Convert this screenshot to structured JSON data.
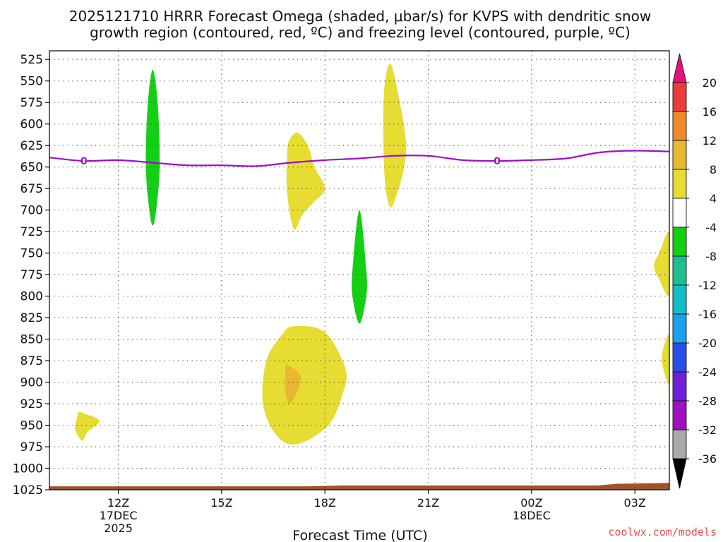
{
  "chart_data": {
    "type": "time-height cross-section",
    "title_lines": [
      "2025121710 HRRR Forecast Omega (shaded, μbar/s) for KVPS with dendritic snow",
      "growth region (contoured, red, ºC) and freezing level (contoured, purple, ºC)"
    ],
    "xlabel": "Forecast Time (UTC)",
    "x_range_hours": [
      10,
      28
    ],
    "x_ticks": [
      {
        "hour": 12,
        "lines": [
          "12Z",
          "17DEC",
          "2025"
        ]
      },
      {
        "hour": 15,
        "lines": [
          "15Z"
        ]
      },
      {
        "hour": 18,
        "lines": [
          "18Z"
        ]
      },
      {
        "hour": 21,
        "lines": [
          "21Z"
        ]
      },
      {
        "hour": 24,
        "lines": [
          "00Z",
          "18DEC"
        ]
      },
      {
        "hour": 27,
        "lines": [
          "03Z"
        ]
      }
    ],
    "y_ticks_mb": [
      525,
      550,
      575,
      600,
      625,
      650,
      675,
      700,
      725,
      750,
      775,
      800,
      825,
      850,
      875,
      900,
      925,
      950,
      975,
      1000,
      1025
    ],
    "y_range_mb": [
      515,
      1025
    ],
    "grid": true,
    "colorbar": {
      "labels": [
        "20",
        "16",
        "12",
        "8",
        "4",
        "-4",
        "-8",
        "-12",
        "-16",
        "-20",
        "-24",
        "-28",
        "-32",
        "-36"
      ],
      "bins": [
        {
          "range": [
            16,
            20
          ],
          "color": "#ee3a3a"
        },
        {
          "range": [
            12,
            16
          ],
          "color": "#f08a28"
        },
        {
          "range": [
            8,
            12
          ],
          "color": "#e8b830"
        },
        {
          "range": [
            4,
            8
          ],
          "color": "#e6dc32"
        },
        {
          "range": [
            -4,
            4
          ],
          "color": "#ffffff"
        },
        {
          "range": [
            -8,
            -4
          ],
          "color": "#14d014"
        },
        {
          "range": [
            -12,
            -8
          ],
          "color": "#1ec090"
        },
        {
          "range": [
            -16,
            -12
          ],
          "color": "#10c0c8"
        },
        {
          "range": [
            -20,
            -16
          ],
          "color": "#1aa0f0"
        },
        {
          "range": [
            -24,
            -20
          ],
          "color": "#2850e8"
        },
        {
          "range": [
            -28,
            -24
          ],
          "color": "#7020d8"
        },
        {
          "range": [
            -32,
            -28
          ],
          "color": "#a010c0"
        },
        {
          "range": [
            -36,
            -32
          ],
          "color": "#aaaaaa"
        }
      ],
      "over_color": "#e8107a",
      "under_color": "#000000"
    },
    "freezing_level": {
      "color": "#9a10c8",
      "contour_label": "0",
      "label_hours": [
        11,
        23
      ],
      "points": [
        [
          10,
          639
        ],
        [
          11,
          643
        ],
        [
          12,
          642
        ],
        [
          13,
          645
        ],
        [
          14,
          648
        ],
        [
          15,
          648
        ],
        [
          16,
          649
        ],
        [
          17,
          645
        ],
        [
          18,
          642
        ],
        [
          19,
          640
        ],
        [
          20,
          637
        ],
        [
          21,
          637
        ],
        [
          22,
          642
        ],
        [
          23,
          643
        ],
        [
          24,
          642
        ],
        [
          25,
          640
        ],
        [
          26,
          633
        ],
        [
          27,
          631
        ],
        [
          28,
          632
        ]
      ]
    },
    "omega_regions": [
      {
        "value_class": "-4 to -8",
        "color": "#14d014",
        "outline": [
          [
            13.0,
            537
          ],
          [
            13.15,
            580
          ],
          [
            13.2,
            650
          ],
          [
            13.1,
            700
          ],
          [
            13.0,
            718
          ],
          [
            12.9,
            700
          ],
          [
            12.8,
            650
          ],
          [
            12.85,
            580
          ]
        ]
      },
      {
        "value_class": "-4 to -8",
        "color": "#14d014",
        "outline": [
          [
            19.0,
            700
          ],
          [
            19.2,
            770
          ],
          [
            19.2,
            800
          ],
          [
            19.0,
            832
          ],
          [
            18.8,
            800
          ],
          [
            18.8,
            770
          ]
        ]
      },
      {
        "value_class": "4 to 8",
        "color": "#e6dc32",
        "outline": [
          [
            19.9,
            530
          ],
          [
            20.15,
            570
          ],
          [
            20.35,
            620
          ],
          [
            20.3,
            650
          ],
          [
            20.1,
            680
          ],
          [
            19.9,
            697
          ],
          [
            19.75,
            670
          ],
          [
            19.7,
            620
          ],
          [
            19.72,
            560
          ]
        ]
      },
      {
        "value_class": "4 to 8",
        "color": "#e6dc32",
        "outline": [
          [
            17.2,
            610
          ],
          [
            17.5,
            625
          ],
          [
            17.7,
            650
          ],
          [
            18.0,
            675
          ],
          [
            17.7,
            690
          ],
          [
            17.35,
            705
          ],
          [
            17.1,
            722
          ],
          [
            16.9,
            680
          ],
          [
            16.9,
            640
          ],
          [
            16.95,
            620
          ]
        ]
      },
      {
        "value_class": "4 to 8",
        "color": "#e6dc32",
        "outline": [
          [
            17.1,
            835
          ],
          [
            18.0,
            842
          ],
          [
            18.6,
            885
          ],
          [
            18.5,
            915
          ],
          [
            18.1,
            950
          ],
          [
            17.2,
            972
          ],
          [
            16.6,
            962
          ],
          [
            16.2,
            925
          ],
          [
            16.3,
            875
          ],
          [
            16.75,
            845
          ]
        ]
      },
      {
        "value_class": "8 to 12",
        "color": "#e8b830",
        "outline": [
          [
            16.9,
            880
          ],
          [
            17.3,
            893
          ],
          [
            17.15,
            915
          ],
          [
            16.95,
            925
          ],
          [
            16.85,
            910
          ],
          [
            16.85,
            890
          ]
        ]
      },
      {
        "value_class": "4 to 8",
        "color": "#e6dc32",
        "outline": [
          [
            10.85,
            935
          ],
          [
            11.05,
            937
          ],
          [
            11.45,
            945
          ],
          [
            11.1,
            958
          ],
          [
            10.95,
            968
          ],
          [
            10.75,
            955
          ],
          [
            10.8,
            942
          ]
        ]
      },
      {
        "value_class": "4 to 8",
        "color": "#e6dc32",
        "outline": [
          [
            28.0,
            727
          ],
          [
            27.7,
            750
          ],
          [
            27.55,
            765
          ],
          [
            27.7,
            780
          ],
          [
            28.0,
            798
          ]
        ]
      },
      {
        "value_class": "4 to 8",
        "color": "#e6dc32",
        "outline": [
          [
            28.0,
            845
          ],
          [
            27.8,
            865
          ],
          [
            27.8,
            880
          ],
          [
            28.0,
            902
          ]
        ]
      }
    ],
    "terrain": {
      "color": "#a0522d",
      "surface_mb": [
        [
          10,
          1021
        ],
        [
          17.5,
          1021
        ],
        [
          18.5,
          1020
        ],
        [
          25.9,
          1020
        ],
        [
          26.5,
          1018
        ],
        [
          28,
          1017
        ]
      ]
    }
  },
  "credit": "coolwx.com/models"
}
